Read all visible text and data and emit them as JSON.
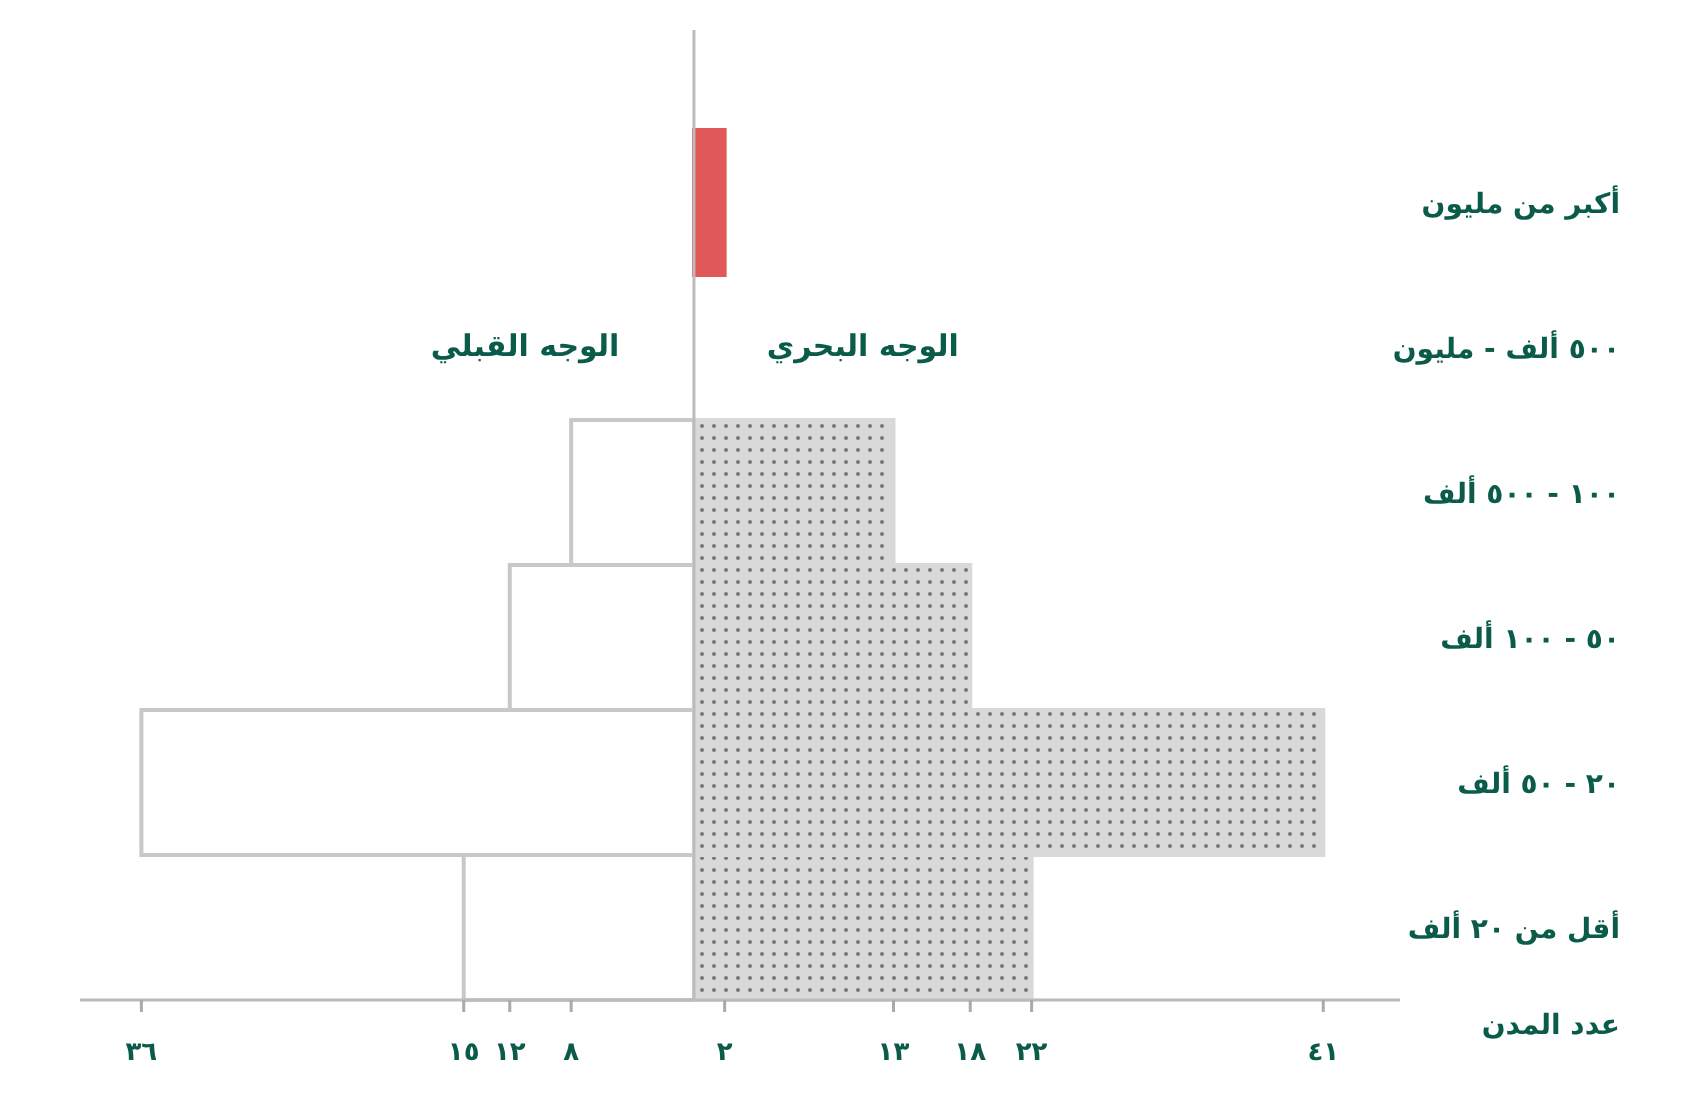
{
  "chart_data": {
    "type": "bar",
    "orientation": "horizontal",
    "xlabel": "عدد المدن",
    "categories": [
      "أكبر من مليون",
      "٥٠٠ ألف - مليون",
      "١٠٠ - ٥٠٠ ألف",
      "٥٠ - ١٠٠ ألف",
      "٢٠ - ٥٠ ألف",
      "أقل من ٢٠ ألف"
    ],
    "series": [
      {
        "name": "الوجه القبلي",
        "color": "#ffffff",
        "values": [
          null,
          null,
          -8,
          -12,
          -36,
          -15
        ]
      },
      {
        "name": "الوجه البحري",
        "colors": [
          "#e05858",
          null,
          "#d9d9d9",
          "#d9d9d9",
          "#d9d9d9",
          "#d9d9d9"
        ],
        "values": [
          2,
          null,
          13,
          18,
          41,
          22
        ]
      }
    ],
    "xlim": [
      -40,
      46
    ],
    "xticks": [
      {
        "value": -36,
        "label": "٣٦"
      },
      {
        "value": -15,
        "label": "١٥"
      },
      {
        "value": -12,
        "label": "١٢"
      },
      {
        "value": -8,
        "label": "٨"
      },
      {
        "value": 2,
        "label": "٢"
      },
      {
        "value": 13,
        "label": "١٣"
      },
      {
        "value": 18,
        "label": "١٨"
      },
      {
        "value": 22,
        "label": "٢٢"
      },
      {
        "value": 41,
        "label": "٤١"
      }
    ],
    "stacked": true
  }
}
